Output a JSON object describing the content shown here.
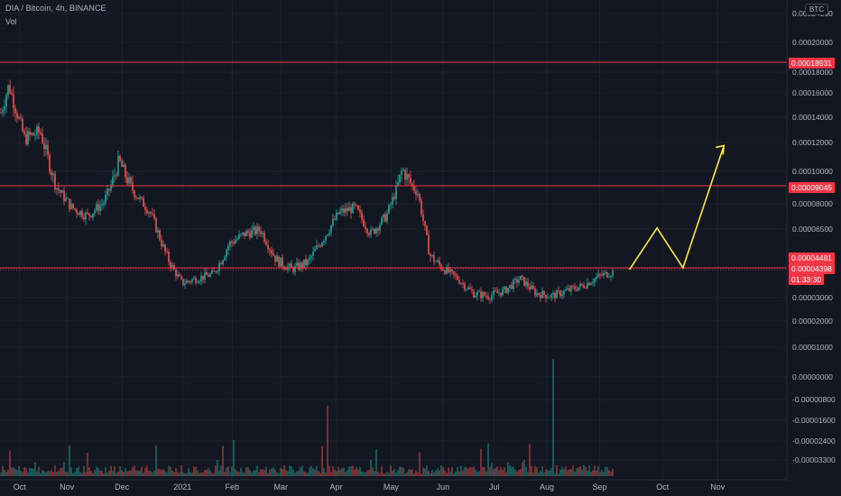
{
  "header": {
    "title": "DIA / Bitcoin, 4h, BINANCE",
    "vol_label": "Vol",
    "currency": "BTC"
  },
  "chart_data": {
    "type": "candlestick",
    "symbol": "DIA / Bitcoin",
    "interval": "4h",
    "exchange": "BINANCE",
    "y_scale": "log",
    "x_tick_labels": [
      "Oct",
      "Nov",
      "Dec",
      "2021",
      "Feb",
      "Mar",
      "Apr",
      "May",
      "Jun",
      "Jul",
      "Aug",
      "Sep",
      "Oct",
      "Nov"
    ],
    "y_tick_labels": [
      "0.00024000",
      "0.00020000",
      "0.00018000",
      "0.00016000",
      "0.00014000",
      "0.00012000",
      "0.00010000",
      "0.00008000",
      "0.00006500",
      "0.00003000",
      "0.00002000",
      "0.00001000",
      "0.00000000",
      "-0.00000800",
      "-0.00001600",
      "-0.00002400",
      "-0.00003300"
    ],
    "price_path": [
      [
        0.0,
        0.00014
      ],
      [
        0.01,
        0.000165
      ],
      [
        0.03,
        0.00012
      ],
      [
        0.05,
        0.000125
      ],
      [
        0.07,
        9e-05
      ],
      [
        0.09,
        7.5e-05
      ],
      [
        0.11,
        7e-05
      ],
      [
        0.13,
        7.8e-05
      ],
      [
        0.15,
        0.000105
      ],
      [
        0.17,
        8.5e-05
      ],
      [
        0.19,
        7.2e-05
      ],
      [
        0.21,
        5e-05
      ],
      [
        0.23,
        3.8e-05
      ],
      [
        0.25,
        4e-05
      ],
      [
        0.27,
        4.2e-05
      ],
      [
        0.29,
        5.5e-05
      ],
      [
        0.31,
        6e-05
      ],
      [
        0.33,
        6.2e-05
      ],
      [
        0.35,
        4.8e-05
      ],
      [
        0.37,
        4.4e-05
      ],
      [
        0.39,
        4.7e-05
      ],
      [
        0.41,
        5.8e-05
      ],
      [
        0.43,
        7.2e-05
      ],
      [
        0.45,
        7.5e-05
      ],
      [
        0.47,
        6e-05
      ],
      [
        0.49,
        7e-05
      ],
      [
        0.51,
        0.0001
      ],
      [
        0.53,
        8.5e-05
      ],
      [
        0.545,
        5e-05
      ],
      [
        0.56,
        4.5e-05
      ],
      [
        0.58,
        4e-05
      ],
      [
        0.6,
        3.4e-05
      ],
      [
        0.62,
        3.3e-05
      ],
      [
        0.64,
        3.5e-05
      ],
      [
        0.66,
        4e-05
      ],
      [
        0.68,
        3.4e-05
      ],
      [
        0.7,
        3.3e-05
      ],
      [
        0.72,
        3.5e-05
      ],
      [
        0.74,
        3.7e-05
      ],
      [
        0.76,
        4.1e-05
      ],
      [
        0.78,
        4.3e-05
      ],
      [
        0.8,
        4.4e-05
      ]
    ],
    "horizontal_levels": [
      {
        "label": "0.00018931",
        "value": 0.00018931
      },
      {
        "label": "0.00009045",
        "value": 9.045e-05
      },
      {
        "label": "0.00004481",
        "value": 4.481e-05
      }
    ],
    "last_price": {
      "label": "0.00004398",
      "value": 4.398e-05
    },
    "countdown": "01:33:30",
    "projection_path": [
      [
        0.8,
        4.398e-05
      ],
      [
        0.835,
        6.3e-05
      ],
      [
        0.868,
        4.481e-05
      ],
      [
        0.92,
        0.000115
      ]
    ],
    "colors": {
      "background": "#131722",
      "grid": "#1e222d",
      "up": "#26a69a",
      "down": "#ef5350",
      "level_line": "#f23645",
      "projection": "#ffeb3b",
      "axis_text": "#b2b5be"
    }
  }
}
